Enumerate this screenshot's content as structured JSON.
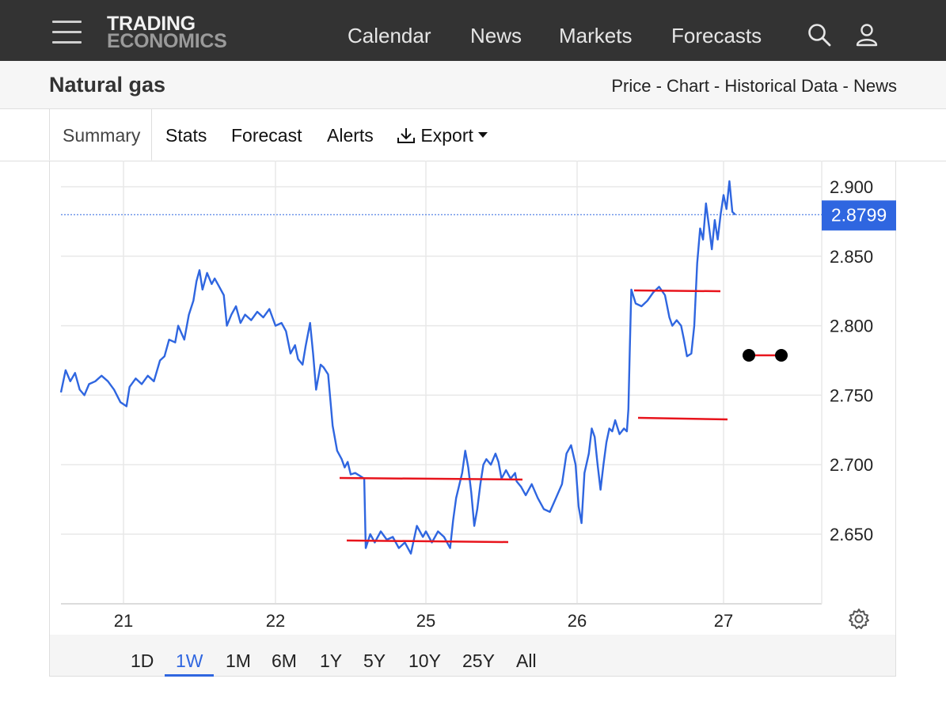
{
  "header": {
    "logo_line1": "TRADING",
    "logo_line2": "ECONOMICS",
    "nav": [
      "Calendar",
      "News",
      "Markets",
      "Forecasts"
    ],
    "icons": [
      "menu-icon",
      "search-icon",
      "user-icon"
    ]
  },
  "subheader": {
    "title": "Natural gas",
    "links": [
      "Price",
      "Chart",
      "Historical Data",
      "News"
    ],
    "separator": " - "
  },
  "tabs": {
    "summary": "Summary",
    "stats": "Stats",
    "forecast": "Forecast",
    "alerts": "Alerts",
    "export": "Export"
  },
  "ranges": [
    "1D",
    "1W",
    "1M",
    "6M",
    "1Y",
    "5Y",
    "10Y",
    "25Y",
    "All"
  ],
  "active_range": "1W",
  "colors": {
    "line": "#2f66e0",
    "annotation": "#e8141c",
    "current_badge": "#2f66e0"
  },
  "chart_data": {
    "type": "line",
    "x_ticks": [
      "21",
      "22",
      "25",
      "26",
      "27"
    ],
    "y_ticks": [
      "2.650",
      "2.700",
      "2.750",
      "2.800",
      "2.850",
      "2.900"
    ],
    "ylim": [
      2.6,
      2.905
    ],
    "current_value": "2.8799",
    "current_value_num": 2.8799,
    "grid": true,
    "series": [
      {
        "values": [
          [
            0.0,
            2.752
          ],
          [
            0.03,
            2.768
          ],
          [
            0.06,
            2.76
          ],
          [
            0.09,
            2.766
          ],
          [
            0.12,
            2.754
          ],
          [
            0.15,
            2.75
          ],
          [
            0.18,
            2.758
          ],
          [
            0.22,
            2.76
          ],
          [
            0.26,
            2.764
          ],
          [
            0.3,
            2.76
          ],
          [
            0.34,
            2.754
          ],
          [
            0.38,
            2.745
          ],
          [
            0.42,
            2.742
          ],
          [
            0.44,
            2.756
          ],
          [
            0.48,
            2.762
          ],
          [
            0.52,
            2.758
          ],
          [
            0.56,
            2.764
          ],
          [
            0.6,
            2.76
          ],
          [
            0.64,
            2.775
          ],
          [
            0.67,
            2.778
          ],
          [
            0.7,
            2.79
          ],
          [
            0.74,
            2.788
          ],
          [
            0.76,
            2.8
          ],
          [
            0.8,
            2.79
          ],
          [
            0.83,
            2.808
          ],
          [
            0.86,
            2.818
          ],
          [
            0.88,
            2.832
          ],
          [
            0.9,
            2.84
          ],
          [
            0.92,
            2.826
          ],
          [
            0.95,
            2.838
          ],
          [
            0.98,
            2.83
          ],
          [
            1.0,
            2.834
          ],
          [
            1.03,
            2.828
          ],
          [
            1.06,
            2.822
          ],
          [
            1.08,
            2.8
          ],
          [
            1.11,
            2.808
          ],
          [
            1.14,
            2.814
          ],
          [
            1.17,
            2.802
          ],
          [
            1.2,
            2.808
          ],
          [
            1.24,
            2.804
          ],
          [
            1.28,
            2.81
          ],
          [
            1.32,
            2.806
          ],
          [
            1.36,
            2.812
          ],
          [
            1.4,
            2.8
          ],
          [
            1.44,
            2.802
          ],
          [
            1.47,
            2.796
          ],
          [
            1.5,
            2.78
          ],
          [
            1.53,
            2.786
          ],
          [
            1.55,
            2.776
          ],
          [
            1.58,
            2.772
          ],
          [
            1.6,
            2.785
          ],
          [
            1.63,
            2.802
          ],
          [
            1.65,
            2.78
          ],
          [
            1.67,
            2.754
          ],
          [
            1.7,
            2.772
          ],
          [
            1.72,
            2.77
          ],
          [
            1.75,
            2.765
          ],
          [
            1.78,
            2.728
          ],
          [
            1.81,
            2.71
          ],
          [
            1.84,
            2.704
          ],
          [
            1.86,
            2.698
          ],
          [
            1.88,
            2.702
          ],
          [
            1.9,
            2.693
          ],
          [
            1.93,
            2.694
          ],
          [
            1.96,
            2.692
          ],
          [
            1.99,
            2.69
          ],
          [
            2.0,
            2.64
          ],
          [
            2.03,
            2.65
          ],
          [
            2.06,
            2.644
          ],
          [
            2.1,
            2.652
          ],
          [
            2.14,
            2.646
          ],
          [
            2.18,
            2.648
          ],
          [
            2.22,
            2.64
          ],
          [
            2.26,
            2.644
          ],
          [
            2.3,
            2.636
          ],
          [
            2.34,
            2.656
          ],
          [
            2.38,
            2.648
          ],
          [
            2.4,
            2.652
          ],
          [
            2.44,
            2.644
          ],
          [
            2.48,
            2.652
          ],
          [
            2.52,
            2.648
          ],
          [
            2.56,
            2.64
          ],
          [
            2.58,
            2.66
          ],
          [
            2.6,
            2.676
          ],
          [
            2.64,
            2.694
          ],
          [
            2.66,
            2.71
          ],
          [
            2.68,
            2.698
          ],
          [
            2.7,
            2.68
          ],
          [
            2.72,
            2.656
          ],
          [
            2.74,
            2.668
          ],
          [
            2.76,
            2.686
          ],
          [
            2.78,
            2.7
          ],
          [
            2.8,
            2.704
          ],
          [
            2.83,
            2.7
          ],
          [
            2.86,
            2.708
          ],
          [
            2.88,
            2.702
          ],
          [
            2.9,
            2.69
          ],
          [
            2.93,
            2.696
          ],
          [
            2.96,
            2.69
          ],
          [
            2.99,
            2.694
          ],
          [
            3.0,
            2.688
          ],
          [
            3.03,
            2.684
          ],
          [
            3.06,
            2.678
          ],
          [
            3.1,
            2.686
          ],
          [
            3.14,
            2.676
          ],
          [
            3.18,
            2.668
          ],
          [
            3.22,
            2.666
          ],
          [
            3.26,
            2.676
          ],
          [
            3.3,
            2.686
          ],
          [
            3.33,
            2.708
          ],
          [
            3.36,
            2.714
          ],
          [
            3.39,
            2.7
          ],
          [
            3.41,
            2.67
          ],
          [
            3.43,
            2.658
          ],
          [
            3.45,
            2.694
          ],
          [
            3.48,
            2.708
          ],
          [
            3.5,
            2.726
          ],
          [
            3.52,
            2.72
          ],
          [
            3.54,
            2.7
          ],
          [
            3.56,
            2.682
          ],
          [
            3.58,
            2.7
          ],
          [
            3.6,
            2.716
          ],
          [
            3.62,
            2.726
          ],
          [
            3.64,
            2.724
          ],
          [
            3.66,
            2.732
          ],
          [
            3.69,
            2.722
          ],
          [
            3.72,
            2.726
          ],
          [
            3.74,
            2.724
          ],
          [
            3.75,
            2.74
          ],
          [
            3.76,
            2.784
          ],
          [
            3.77,
            2.826
          ],
          [
            3.8,
            2.816
          ],
          [
            3.84,
            2.814
          ],
          [
            3.88,
            2.818
          ],
          [
            3.92,
            2.824
          ],
          [
            3.96,
            2.828
          ],
          [
            4.0,
            2.822
          ],
          [
            4.03,
            2.806
          ],
          [
            4.05,
            2.8
          ],
          [
            4.08,
            2.804
          ],
          [
            4.11,
            2.8
          ],
          [
            4.13,
            2.79
          ],
          [
            4.15,
            2.778
          ],
          [
            4.18,
            2.78
          ],
          [
            4.2,
            2.8
          ],
          [
            4.22,
            2.845
          ],
          [
            4.24,
            2.87
          ],
          [
            4.26,
            2.862
          ],
          [
            4.28,
            2.888
          ],
          [
            4.3,
            2.872
          ],
          [
            4.32,
            2.855
          ],
          [
            4.34,
            2.876
          ],
          [
            4.36,
            2.862
          ],
          [
            4.38,
            2.88
          ],
          [
            4.4,
            2.894
          ],
          [
            4.42,
            2.884
          ],
          [
            4.44,
            2.904
          ],
          [
            4.46,
            2.882
          ],
          [
            4.48,
            2.8799
          ]
        ]
      }
    ]
  }
}
